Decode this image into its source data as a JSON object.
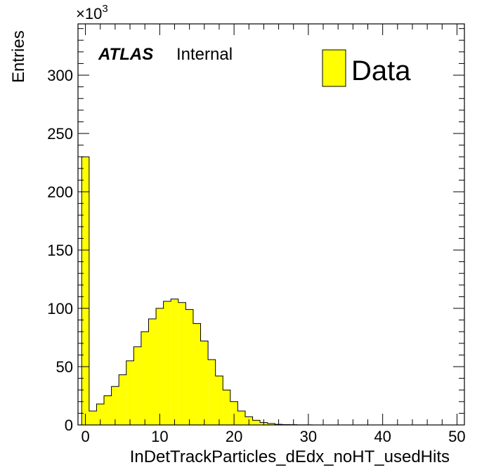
{
  "chart_data": {
    "type": "bar",
    "histogram": true,
    "xlabel": "InDetTrackParticles_dEdx_noHT_usedHits",
    "ylabel": "Entries",
    "y_multiplier_label": "×10",
    "y_multiplier_exponent": "3",
    "xlim": [
      -1,
      51
    ],
    "ylim": [
      0,
      344
    ],
    "x_ticks": [
      0,
      10,
      20,
      30,
      40,
      50
    ],
    "y_ticks": [
      0,
      50,
      100,
      150,
      200,
      250,
      300
    ],
    "bin_width": 1,
    "bin_edges_start": -0.5,
    "values": [
      230,
      12,
      18,
      25,
      33,
      43,
      55,
      67,
      80,
      91,
      100,
      106,
      108,
      105,
      99,
      87,
      72,
      56,
      42,
      30,
      20,
      12,
      7,
      4,
      2,
      1.2,
      0.5,
      0.3,
      0.2,
      0.1,
      0.1,
      0,
      0,
      0,
      0,
      0,
      0,
      0,
      0,
      0,
      0,
      0,
      0,
      0,
      0,
      0,
      0,
      0,
      0,
      0,
      0
    ],
    "series": [
      {
        "name": "Data",
        "color": "#ffff00"
      }
    ],
    "legend_position": "top-right",
    "grid": false
  },
  "labels": {
    "experiment": "ATLAS",
    "status": "Internal"
  },
  "colors": {
    "fill": "#ffff00",
    "line": "#000000"
  }
}
